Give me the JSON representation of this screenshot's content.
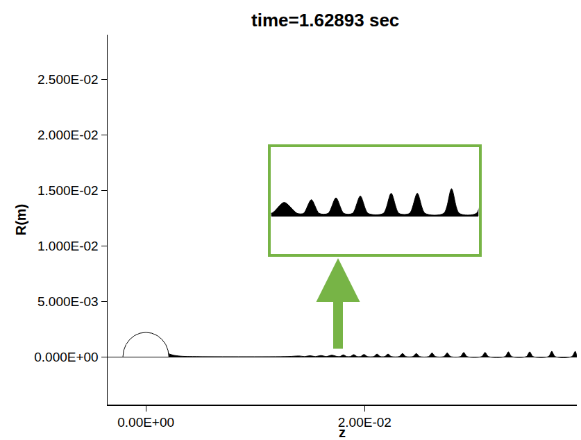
{
  "chart_data": {
    "type": "area",
    "title": "time=1.62893 sec",
    "x_label": "z",
    "y_label": "R(m)",
    "xlim": [
      -0.0035,
      0.0394
    ],
    "ylim": [
      -0.0043,
      0.029
    ],
    "xticks": [
      {
        "value": 0,
        "label": "0.00E+00"
      },
      {
        "value": 0.02,
        "label": "2.00E-02"
      }
    ],
    "yticks": [
      {
        "value": 0,
        "label": "0.000E+00"
      },
      {
        "value": 0.005,
        "label": "5.000E-03"
      },
      {
        "value": 0.01,
        "label": "1.000E-02"
      },
      {
        "value": 0.015,
        "label": "1.500E-02"
      },
      {
        "value": 0.02,
        "label": "2.000E-02"
      },
      {
        "value": 0.025,
        "label": "2.500E-02"
      }
    ],
    "grid": false,
    "series": [
      {
        "type": "line",
        "color": "black",
        "x": [
          -0.0021,
          -0.00203,
          -0.00182,
          -0.00148,
          -0.00105,
          -0.00054,
          0,
          0.00054,
          0.00105,
          0.00148,
          0.00182,
          0.00203,
          0.0021
        ],
        "values": [
          0,
          0.00057,
          0.0011,
          0.00156,
          0.00191,
          0.00213,
          0.0022,
          0.00213,
          0.00191,
          0.00156,
          0.0011,
          0.00057,
          0
        ]
      },
      {
        "type": "area",
        "color": "black",
        "x": [
          0.0021,
          0.0025,
          0.0032,
          0.004,
          0.013,
          0.014,
          0.0145,
          0.015,
          0.0155,
          0.016,
          0.0165,
          0.017,
          0.0175,
          0.01775,
          0.01805,
          0.01835,
          0.0187,
          0.019,
          0.0193,
          0.01964,
          0.01994,
          0.02024,
          0.02083,
          0.02113,
          0.02143,
          0.02184,
          0.02214,
          0.02244,
          0.02316,
          0.02346,
          0.02376,
          0.02442,
          0.02472,
          0.02502,
          0.02586,
          0.02616,
          0.02646,
          0.02725,
          0.02755,
          0.02785,
          0.02876,
          0.02906,
          0.02936,
          0.03071,
          0.03101,
          0.03131,
          0.03284,
          0.03314,
          0.03344,
          0.03479,
          0.03509,
          0.03539,
          0.03681,
          0.03711,
          0.03741,
          0.03895,
          0.03925,
          0.0394
        ],
        "values": [
          0.00028,
          0.00015,
          6e-05,
          3e-05,
          3e-05,
          8e-05,
          3e-05,
          0.0001,
          3e-05,
          0.00012,
          3e-05,
          0.00015,
          3e-05,
          3e-05,
          0.00018,
          3e-05,
          3e-05,
          0.0002,
          3e-05,
          3e-05,
          0.00022,
          3e-05,
          3e-05,
          0.00025,
          3e-05,
          3e-05,
          0.00025,
          3e-05,
          3e-05,
          0.0003,
          3e-05,
          3e-05,
          0.0003,
          3e-05,
          3e-05,
          0.00035,
          3e-05,
          3e-05,
          0.00035,
          3e-05,
          3e-05,
          0.0004,
          3e-05,
          3e-05,
          0.0004,
          3e-05,
          3e-05,
          0.00045,
          3e-05,
          3e-05,
          0.00045,
          3e-05,
          3e-05,
          0.0005,
          3e-05,
          3e-05,
          0.0005,
          3e-05
        ]
      }
    ],
    "inset": {
      "xlim": [
        0.0165,
        0.0245
      ],
      "ylim": [
        -0.0004,
        0.00074
      ]
    }
  }
}
